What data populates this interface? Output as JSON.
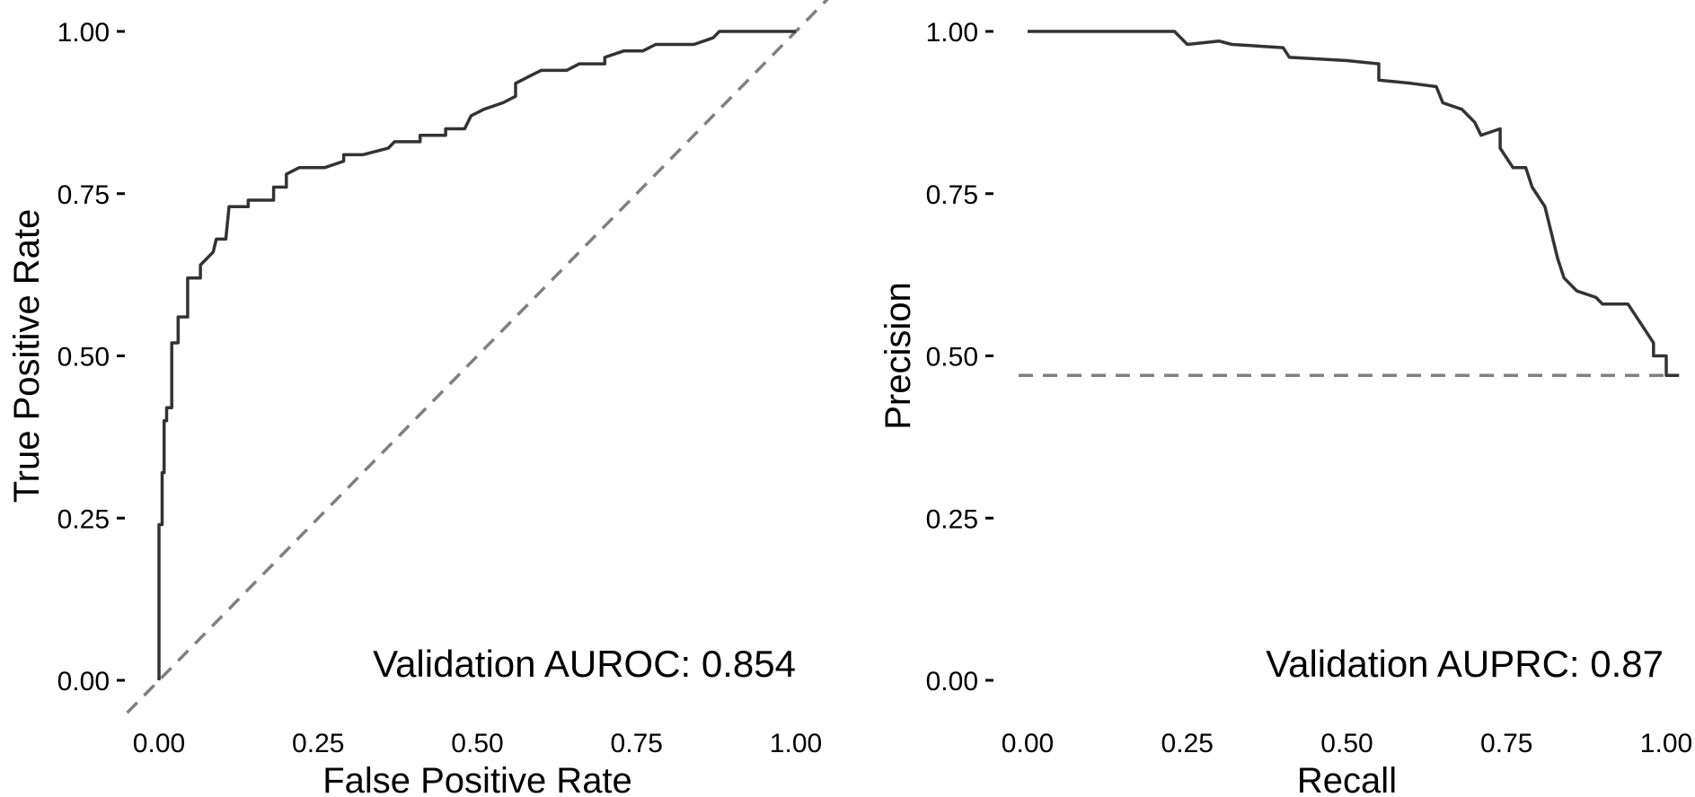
{
  "chart_data": [
    {
      "type": "line",
      "xlabel": "False Positive Rate",
      "ylabel": "True Positive Rate",
      "xlim": [
        0,
        1
      ],
      "ylim": [
        0,
        1
      ],
      "x_ticks": [
        "0.00",
        "0.25",
        "0.50",
        "0.75",
        "1.00"
      ],
      "y_ticks": [
        "0.00",
        "0.25",
        "0.50",
        "0.75",
        "1.00"
      ],
      "annotation": "Validation AUROC: 0.854",
      "reference_line": {
        "type": "diagonal",
        "style": "dashed",
        "color": "#808080"
      },
      "grid": false,
      "series": [
        {
          "color": "#333333",
          "points": [
            [
              0.0,
              0.0
            ],
            [
              0.0,
              0.24
            ],
            [
              0.005,
              0.24
            ],
            [
              0.005,
              0.32
            ],
            [
              0.008,
              0.32
            ],
            [
              0.008,
              0.4
            ],
            [
              0.012,
              0.4
            ],
            [
              0.012,
              0.42
            ],
            [
              0.02,
              0.42
            ],
            [
              0.02,
              0.52
            ],
            [
              0.03,
              0.52
            ],
            [
              0.03,
              0.56
            ],
            [
              0.045,
              0.56
            ],
            [
              0.045,
              0.62
            ],
            [
              0.065,
              0.62
            ],
            [
              0.065,
              0.64
            ],
            [
              0.075,
              0.65
            ],
            [
              0.085,
              0.66
            ],
            [
              0.09,
              0.68
            ],
            [
              0.105,
              0.68
            ],
            [
              0.11,
              0.73
            ],
            [
              0.14,
              0.73
            ],
            [
              0.14,
              0.74
            ],
            [
              0.18,
              0.74
            ],
            [
              0.18,
              0.76
            ],
            [
              0.2,
              0.76
            ],
            [
              0.2,
              0.78
            ],
            [
              0.22,
              0.79
            ],
            [
              0.26,
              0.79
            ],
            [
              0.29,
              0.8
            ],
            [
              0.29,
              0.81
            ],
            [
              0.32,
              0.81
            ],
            [
              0.36,
              0.82
            ],
            [
              0.37,
              0.83
            ],
            [
              0.41,
              0.83
            ],
            [
              0.41,
              0.84
            ],
            [
              0.45,
              0.84
            ],
            [
              0.45,
              0.85
            ],
            [
              0.48,
              0.85
            ],
            [
              0.49,
              0.87
            ],
            [
              0.51,
              0.88
            ],
            [
              0.54,
              0.89
            ],
            [
              0.56,
              0.9
            ],
            [
              0.56,
              0.92
            ],
            [
              0.58,
              0.93
            ],
            [
              0.6,
              0.94
            ],
            [
              0.64,
              0.94
            ],
            [
              0.66,
              0.95
            ],
            [
              0.7,
              0.95
            ],
            [
              0.7,
              0.96
            ],
            [
              0.73,
              0.97
            ],
            [
              0.76,
              0.97
            ],
            [
              0.78,
              0.98
            ],
            [
              0.84,
              0.98
            ],
            [
              0.87,
              0.99
            ],
            [
              0.88,
              1.0
            ],
            [
              1.0,
              1.0
            ]
          ]
        }
      ]
    },
    {
      "type": "line",
      "xlabel": "Recall",
      "ylabel": "Precision",
      "xlim": [
        0,
        1
      ],
      "ylim": [
        0,
        1
      ],
      "x_ticks": [
        "0.00",
        "0.25",
        "0.50",
        "0.75",
        "1.00"
      ],
      "y_ticks": [
        "0.00",
        "0.25",
        "0.50",
        "0.75",
        "1.00"
      ],
      "annotation": "Validation AUPRC: 0.87",
      "reference_line": {
        "type": "horizontal",
        "y": 0.47,
        "style": "dashed",
        "color": "#808080"
      },
      "grid": false,
      "series": [
        {
          "color": "#333333",
          "points": [
            [
              0.0,
              1.0
            ],
            [
              0.23,
              1.0
            ],
            [
              0.25,
              0.98
            ],
            [
              0.3,
              0.985
            ],
            [
              0.32,
              0.98
            ],
            [
              0.4,
              0.975
            ],
            [
              0.41,
              0.96
            ],
            [
              0.5,
              0.955
            ],
            [
              0.55,
              0.95
            ],
            [
              0.55,
              0.925
            ],
            [
              0.6,
              0.92
            ],
            [
              0.64,
              0.915
            ],
            [
              0.65,
              0.89
            ],
            [
              0.68,
              0.88
            ],
            [
              0.7,
              0.86
            ],
            [
              0.71,
              0.84
            ],
            [
              0.74,
              0.85
            ],
            [
              0.74,
              0.82
            ],
            [
              0.76,
              0.79
            ],
            [
              0.78,
              0.79
            ],
            [
              0.79,
              0.76
            ],
            [
              0.81,
              0.73
            ],
            [
              0.82,
              0.69
            ],
            [
              0.83,
              0.65
            ],
            [
              0.84,
              0.62
            ],
            [
              0.86,
              0.6
            ],
            [
              0.89,
              0.59
            ],
            [
              0.9,
              0.58
            ],
            [
              0.94,
              0.58
            ],
            [
              0.96,
              0.55
            ],
            [
              0.98,
              0.52
            ],
            [
              0.98,
              0.5
            ],
            [
              1.0,
              0.5
            ],
            [
              1.0,
              0.47
            ],
            [
              1.02,
              0.47
            ]
          ]
        }
      ]
    }
  ]
}
